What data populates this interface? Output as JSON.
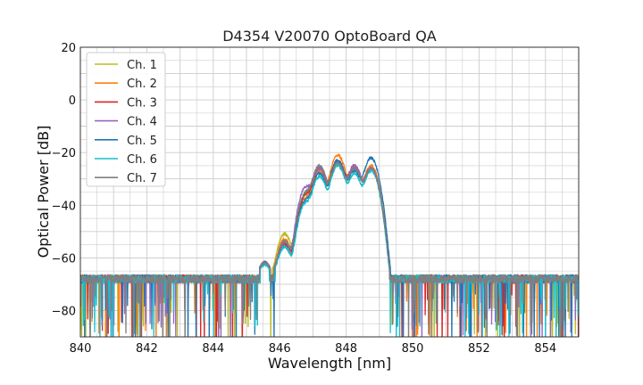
{
  "chart_data": {
    "type": "line",
    "title": "D4354 V20070 OptoBoard QA",
    "xlabel": "Wavelength [nm]",
    "ylabel": "Optical Power [dB]",
    "xlim": [
      840,
      855
    ],
    "ylim": [
      -90,
      20
    ],
    "xticks": [
      840,
      842,
      844,
      846,
      848,
      850,
      852,
      854
    ],
    "yticks": [
      -80,
      -60,
      -40,
      -20,
      0,
      20
    ],
    "grid": true,
    "legend_position": "top-left",
    "noise_floor": -68,
    "series": [
      {
        "name": "Ch. 1",
        "color": "#bcbd22",
        "peaks": [
          {
            "x": 845.55,
            "y": -63
          },
          {
            "x": 846.15,
            "y": -51
          },
          {
            "x": 846.8,
            "y": -36
          },
          {
            "x": 847.2,
            "y": -27
          },
          {
            "x": 847.75,
            "y": -24
          },
          {
            "x": 848.25,
            "y": -26
          },
          {
            "x": 848.75,
            "y": -26
          }
        ]
      },
      {
        "name": "Ch. 2",
        "color": "#ff7f0e",
        "peaks": [
          {
            "x": 845.55,
            "y": -63
          },
          {
            "x": 846.15,
            "y": -53
          },
          {
            "x": 846.8,
            "y": -37
          },
          {
            "x": 847.2,
            "y": -27
          },
          {
            "x": 847.75,
            "y": -21
          },
          {
            "x": 848.25,
            "y": -26
          },
          {
            "x": 848.75,
            "y": -25
          }
        ]
      },
      {
        "name": "Ch. 3",
        "color": "#d62728",
        "peaks": [
          {
            "x": 845.55,
            "y": -63
          },
          {
            "x": 846.15,
            "y": -55
          },
          {
            "x": 846.8,
            "y": -36
          },
          {
            "x": 847.2,
            "y": -26
          },
          {
            "x": 847.75,
            "y": -23
          },
          {
            "x": 848.25,
            "y": -25
          },
          {
            "x": 848.75,
            "y": -26
          }
        ]
      },
      {
        "name": "Ch. 4",
        "color": "#9467bd",
        "peaks": [
          {
            "x": 845.55,
            "y": -63
          },
          {
            "x": 846.15,
            "y": -54
          },
          {
            "x": 846.8,
            "y": -33
          },
          {
            "x": 847.2,
            "y": -26
          },
          {
            "x": 847.75,
            "y": -24
          },
          {
            "x": 848.25,
            "y": -25
          },
          {
            "x": 848.75,
            "y": -26
          }
        ]
      },
      {
        "name": "Ch. 5",
        "color": "#1f77b4",
        "peaks": [
          {
            "x": 845.55,
            "y": -63
          },
          {
            "x": 846.15,
            "y": -56
          },
          {
            "x": 846.8,
            "y": -38
          },
          {
            "x": 847.2,
            "y": -28
          },
          {
            "x": 847.75,
            "y": -23
          },
          {
            "x": 848.25,
            "y": -27
          },
          {
            "x": 848.75,
            "y": -22
          }
        ]
      },
      {
        "name": "Ch. 6",
        "color": "#17becf",
        "peaks": [
          {
            "x": 845.55,
            "y": -64
          },
          {
            "x": 846.15,
            "y": -56
          },
          {
            "x": 846.8,
            "y": -39
          },
          {
            "x": 847.2,
            "y": -29
          },
          {
            "x": 847.75,
            "y": -25
          },
          {
            "x": 848.25,
            "y": -28
          },
          {
            "x": 848.75,
            "y": -27
          }
        ]
      },
      {
        "name": "Ch. 7",
        "color": "#7f7f7f",
        "peaks": [
          {
            "x": 845.55,
            "y": -63
          },
          {
            "x": 846.15,
            "y": -54
          },
          {
            "x": 846.8,
            "y": -35
          },
          {
            "x": 847.2,
            "y": -25
          },
          {
            "x": 847.75,
            "y": -24
          },
          {
            "x": 848.25,
            "y": -26
          },
          {
            "x": 848.75,
            "y": -26
          }
        ]
      }
    ]
  }
}
